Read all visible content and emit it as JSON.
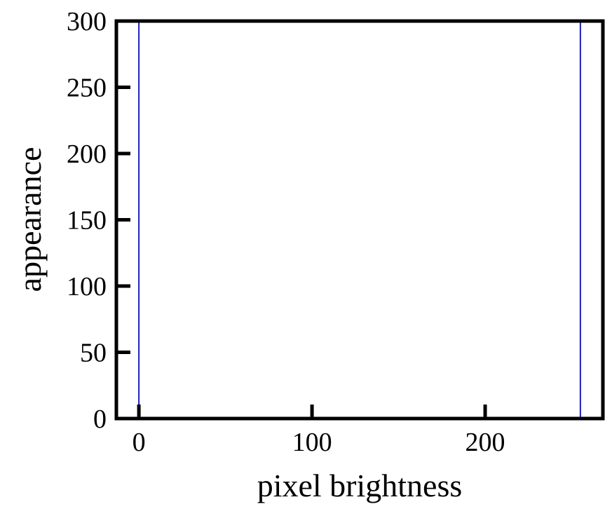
{
  "chart_data": {
    "type": "bar",
    "title": "",
    "xlabel": "pixel brightness",
    "ylabel": "appearance",
    "xlim": [
      -13,
      268
    ],
    "ylim": [
      0,
      300
    ],
    "x_ticks": [
      {
        "value": 0,
        "label": "0"
      },
      {
        "value": 100,
        "label": "100"
      },
      {
        "value": 200,
        "label": "200"
      }
    ],
    "y_ticks": [
      {
        "value": 0,
        "label": "0"
      },
      {
        "value": 50,
        "label": "50"
      },
      {
        "value": 100,
        "label": "100"
      },
      {
        "value": 150,
        "label": "150"
      },
      {
        "value": 200,
        "label": "200"
      },
      {
        "value": 250,
        "label": "250"
      },
      {
        "value": 300,
        "label": "300"
      }
    ],
    "series": [
      {
        "x": [
          0,
          255
        ],
        "values": [
          300,
          300
        ],
        "color": "#1f1fbf"
      }
    ],
    "grid": false,
    "legend": "none"
  }
}
